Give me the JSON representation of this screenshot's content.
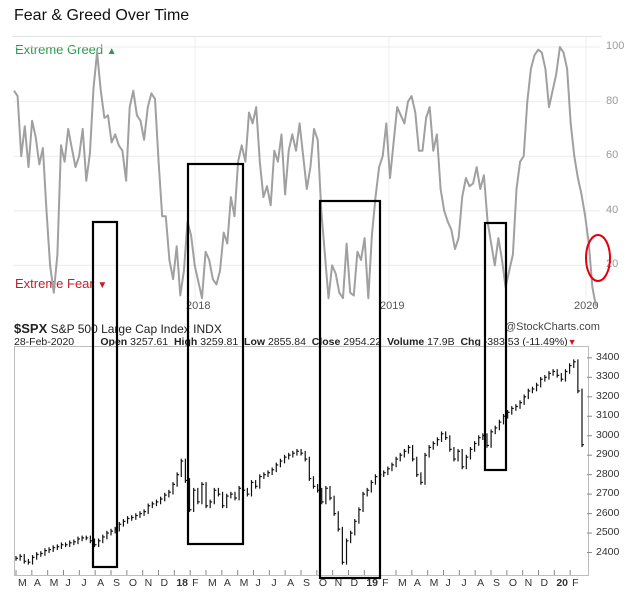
{
  "title": "Fear & Greed Over Time",
  "labels": {
    "extreme_greed": "Extreme Greed",
    "extreme_fear": "Extreme Fear"
  },
  "spx": {
    "ticker": "$SPX",
    "name": "S&P 500 Large Cap Index",
    "exchange": "INDX",
    "watermark": "@StockCharts.com",
    "date": "28-Feb-2020",
    "open_label": "Open",
    "open": "3257.61",
    "high_label": "High",
    "high": "3259.81",
    "low_label": "Low",
    "low": "2855.84",
    "close_label": "Close",
    "close": "2954.22",
    "volume_label": "Volume",
    "volume": "17.9B",
    "chg_label": "Chg",
    "chg": "-383.53 (-11.49%)"
  },
  "colors": {
    "fg_line": "#a0a0a0",
    "spx_line": "#111111",
    "boxes": "#000000",
    "highlight_circle": "#e2000f",
    "greed": "#2e9a4e",
    "fear": "#c21f28"
  },
  "chart_data": [
    {
      "type": "line",
      "title": "Fear & Greed Over Time",
      "ylim": [
        0,
        100
      ],
      "y_ticks": [
        "100",
        "80",
        "60",
        "40",
        "20"
      ],
      "x_year_labels": [
        "2018",
        "2019",
        "2020"
      ],
      "grid": true,
      "series": [
        {
          "values": [
            84,
            82,
            60,
            71,
            56,
            73,
            67,
            57,
            63,
            40,
            20,
            10,
            24,
            64,
            58,
            70,
            63,
            56,
            60,
            70,
            51,
            61,
            85,
            98,
            84,
            74,
            75,
            65,
            68,
            64,
            62,
            51,
            78,
            84,
            75,
            73,
            66,
            78,
            83,
            81,
            58,
            38,
            38,
            22,
            15,
            27,
            9,
            18,
            36,
            31,
            20,
            14,
            8,
            25,
            22,
            15,
            13,
            18,
            32,
            28,
            45,
            38,
            58,
            64,
            58,
            76,
            72,
            78,
            58,
            45,
            49,
            42,
            62,
            58,
            68,
            46,
            62,
            68,
            62,
            72,
            60,
            48,
            56,
            70,
            66,
            40,
            24,
            8,
            20,
            17,
            10,
            8,
            28,
            10,
            9,
            25,
            22,
            30,
            8,
            31,
            45,
            56,
            60,
            72,
            52,
            65,
            78,
            75,
            72,
            80,
            82,
            76,
            62,
            62,
            74,
            78,
            62,
            68,
            48,
            40,
            36,
            33,
            26,
            30,
            45,
            52,
            49,
            50,
            56,
            48,
            53,
            36,
            28,
            20,
            30,
            22,
            12,
            18,
            24,
            48,
            58,
            60,
            80,
            92,
            97,
            99,
            98,
            92,
            78,
            84,
            90,
            100,
            98,
            92,
            72,
            60,
            52,
            46,
            38,
            28,
            12,
            5
          ]
        }
      ]
    },
    {
      "type": "line",
      "title": "$SPX",
      "ylim": [
        2300,
        3430
      ],
      "y_ticks": [
        "3400",
        "3300",
        "3200",
        "3100",
        "3000",
        "2900",
        "2800",
        "2700",
        "2600",
        "2500",
        "2400"
      ],
      "x_ticks": [
        "M",
        "A",
        "M",
        "J",
        "J",
        "A",
        "S",
        "O",
        "N",
        "D",
        "18",
        "F",
        "M",
        "A",
        "M",
        "J",
        "J",
        "A",
        "S",
        "O",
        "N",
        "D",
        "19",
        "F",
        "M",
        "A",
        "M",
        "J",
        "J",
        "A",
        "S",
        "O",
        "N",
        "D",
        "20",
        "F"
      ],
      "series": [
        {
          "name": "$SPX",
          "values": [
            2370,
            2380,
            2355,
            2350,
            2375,
            2390,
            2395,
            2410,
            2415,
            2425,
            2430,
            2440,
            2440,
            2450,
            2455,
            2470,
            2475,
            2475,
            2460,
            2440,
            2460,
            2480,
            2500,
            2510,
            2520,
            2545,
            2560,
            2575,
            2580,
            2590,
            2600,
            2610,
            2640,
            2650,
            2660,
            2675,
            2695,
            2710,
            2750,
            2800,
            2870,
            2770,
            2620,
            2720,
            2660,
            2750,
            2640,
            2660,
            2720,
            2700,
            2640,
            2690,
            2700,
            2680,
            2730,
            2720,
            2700,
            2760,
            2740,
            2790,
            2800,
            2810,
            2825,
            2850,
            2870,
            2890,
            2900,
            2910,
            2920,
            2910,
            2880,
            2780,
            2740,
            2720,
            2660,
            2730,
            2680,
            2600,
            2520,
            2350,
            2460,
            2500,
            2560,
            2620,
            2700,
            2720,
            2760,
            2790,
            2800,
            2810,
            2830,
            2850,
            2880,
            2900,
            2920,
            2940,
            2880,
            2800,
            2760,
            2900,
            2940,
            2960,
            2980,
            3010,
            2990,
            2930,
            2880,
            2920,
            2840,
            2890,
            2930,
            2960,
            2990,
            3000,
            2950,
            3020,
            3040,
            3070,
            3100,
            3120,
            3140,
            3150,
            3170,
            3200,
            3230,
            3240,
            3260,
            3290,
            3300,
            3320,
            3330,
            3310,
            3290,
            3330,
            3360,
            3380,
            3230,
            2954
          ]
        }
      ]
    }
  ]
}
